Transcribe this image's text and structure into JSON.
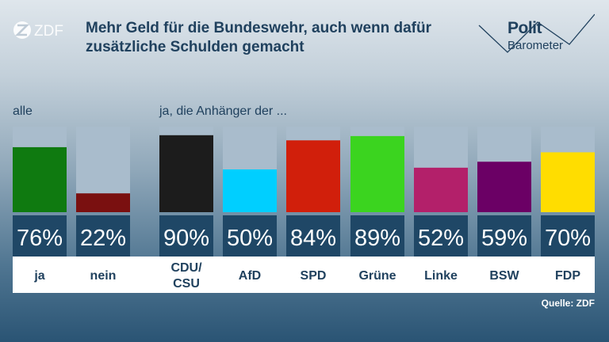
{
  "header": {
    "title": "Mehr Geld für die Bundeswehr, auch wenn dafür zusätzliche Schulden gemacht",
    "logo": "ZDF",
    "brand_line1": "Polit",
    "brand_line2": "Barometer"
  },
  "labels": {
    "group_all": "alle",
    "group_parties": "ja, die Anhänger der ..."
  },
  "source": "Quelle: ZDF",
  "colors": {
    "title": "#20415e",
    "track": "#a9bccc",
    "value_bg": "#1f4766"
  },
  "chart_data": {
    "type": "bar",
    "unit": "%",
    "ylim": [
      0,
      100
    ],
    "bars": [
      {
        "label": "ja",
        "value": 76,
        "display": "76%",
        "color": "#0f7a10",
        "group": "alle"
      },
      {
        "label": "nein",
        "value": 22,
        "display": "22%",
        "color": "#7a1010",
        "group": "alle"
      },
      {
        "label": "CDU/\nCSU",
        "value": 90,
        "display": "90%",
        "color": "#1c1c1c",
        "group": "parties"
      },
      {
        "label": "AfD",
        "value": 50,
        "display": "50%",
        "color": "#00cfff",
        "group": "parties"
      },
      {
        "label": "SPD",
        "value": 84,
        "display": "84%",
        "color": "#d11f0b",
        "group": "parties"
      },
      {
        "label": "Grüne",
        "value": 89,
        "display": "89%",
        "color": "#3bd41f",
        "group": "parties"
      },
      {
        "label": "Linke",
        "value": 52,
        "display": "52%",
        "color": "#b3206a",
        "group": "parties"
      },
      {
        "label": "BSW",
        "value": 59,
        "display": "59%",
        "color": "#6b0065",
        "group": "parties"
      },
      {
        "label": "FDP",
        "value": 70,
        "display": "70%",
        "color": "#ffdd00",
        "group": "parties"
      }
    ]
  }
}
